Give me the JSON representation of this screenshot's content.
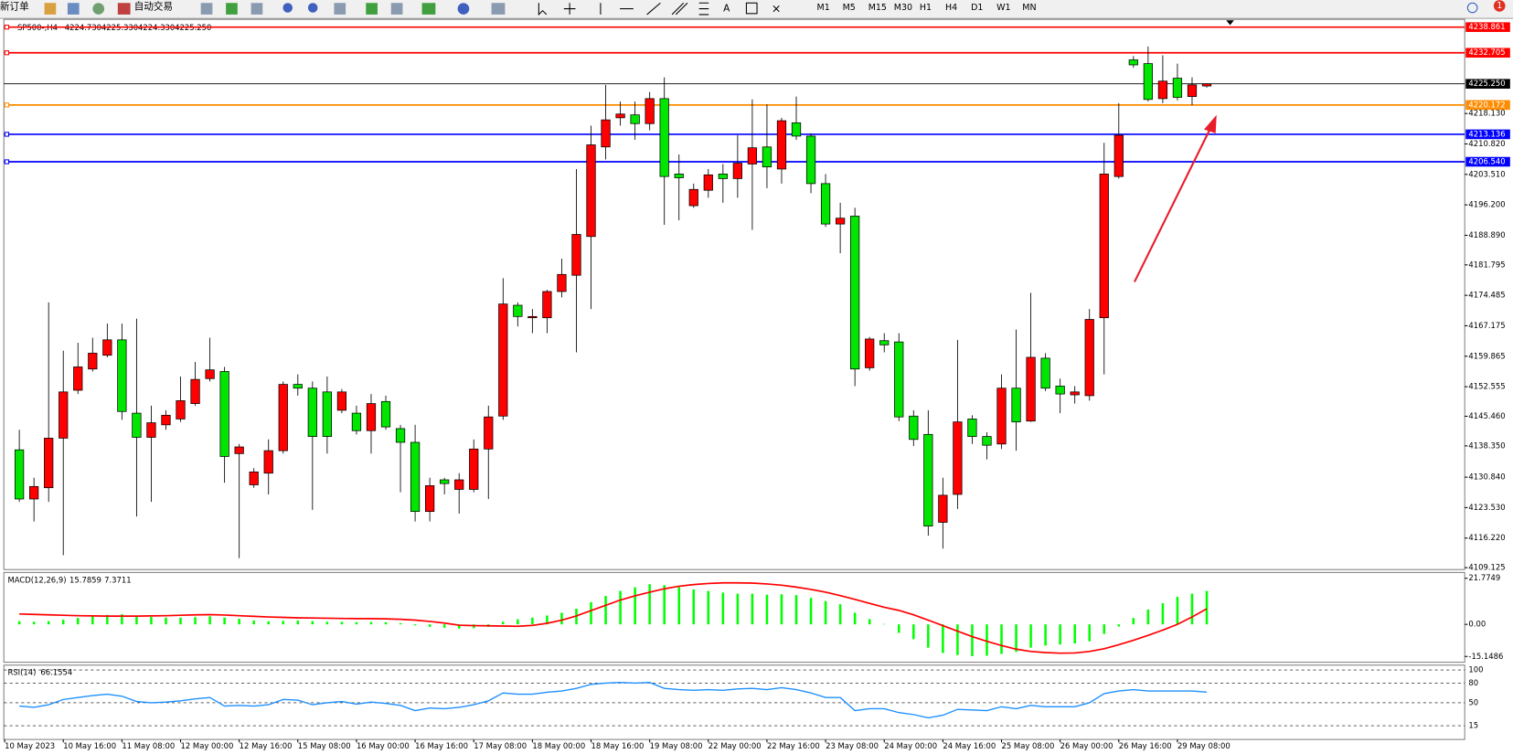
{
  "toolbar": {
    "new_order": "新订单",
    "auto_trading": "自动交易",
    "timeframes": [
      "M1",
      "M5",
      "M15",
      "M30",
      "H1",
      "H4",
      "D1",
      "W1",
      "MN"
    ],
    "notification_count": 1
  },
  "chart_data": [
    {
      "type": "candlestick",
      "title": "SP500-,H4",
      "ohlc_labels": [
        "4224.730",
        "4225.330",
        "4224.330",
        "4225.250"
      ],
      "up_color": "#ff0000",
      "down_color": "#00e600",
      "open": [
        4137.4,
        4125.6,
        4128.3,
        4140.2,
        4151.7,
        4156.8,
        4160.1,
        4163.8,
        4146.2,
        4140.4,
        4143.4,
        4144.8,
        4148.5,
        4154.5,
        4156.2,
        4136.5,
        4129.0,
        4131.8,
        4137.2,
        4153.1,
        4152.2,
        4151.3,
        4146.9,
        4146.2,
        4142.0,
        4149.0,
        4142.5,
        4139.2,
        4122.6,
        4130.2,
        4127.9,
        4127.9,
        4137.6,
        4145.5,
        4172.1,
        4169.1,
        4169.1,
        4175.4,
        4179.3,
        4188.6,
        4210.1,
        4217.1,
        4217.8,
        4215.7,
        4221.7,
        4203.6,
        4196.0,
        4199.7,
        4203.6,
        4202.5,
        4206.0,
        4210.1,
        4204.8,
        4215.9,
        4212.7,
        4201.3,
        4191.6,
        4193.5,
        4157.1,
        4163.6,
        4163.3,
        4145.5,
        4141.1,
        4120.0,
        4126.7,
        4144.8,
        4140.6,
        4138.8,
        4152.2,
        4144.3,
        4159.4,
        4152.7,
        4150.6,
        4150.4,
        4169.1,
        4203.0,
        4231.0,
        4230.1,
        4221.7,
        4226.6,
        4222.2,
        4224.73
      ],
      "high": [
        4142.2,
        4130.7,
        4172.8,
        4161.2,
        4163.1,
        4164.3,
        4167.7,
        4167.7,
        4168.9,
        4148.0,
        4146.9,
        4155.0,
        4158.5,
        4164.3,
        4157.3,
        4138.8,
        4133.0,
        4139.9,
        4153.8,
        4155.5,
        4153.8,
        4155.0,
        4152.0,
        4148.0,
        4150.8,
        4150.4,
        4143.4,
        4143.4,
        4130.7,
        4130.7,
        4131.8,
        4139.9,
        4148.0,
        4178.6,
        4172.8,
        4171.2,
        4175.8,
        4183.3,
        4204.8,
        4215.2,
        4225.0,
        4221.0,
        4221.0,
        4223.3,
        4226.8,
        4208.3,
        4201.3,
        4204.8,
        4206.0,
        4212.9,
        4221.5,
        4220.3,
        4217.1,
        4222.2,
        4213.4,
        4203.6,
        4196.7,
        4195.5,
        4164.5,
        4165.4,
        4165.4,
        4146.9,
        4146.9,
        4130.7,
        4163.8,
        4145.7,
        4141.6,
        4155.5,
        4166.3,
        4175.1,
        4160.6,
        4154.5,
        4152.7,
        4171.2,
        4211.1,
        4220.6,
        4231.9,
        4234.2,
        4232.1,
        4230.1,
        4226.8,
        4225.33
      ],
      "low": [
        4124.9,
        4120.2,
        4124.9,
        4112.1,
        4150.8,
        4156.2,
        4159.6,
        4144.6,
        4121.4,
        4124.9,
        4142.2,
        4144.1,
        4148.0,
        4153.8,
        4129.5,
        4111.4,
        4128.3,
        4126.7,
        4136.5,
        4150.4,
        4123.0,
        4136.5,
        4146.2,
        4141.1,
        4136.5,
        4142.2,
        4127.2,
        4120.2,
        4120.2,
        4126.7,
        4122.1,
        4127.2,
        4125.6,
        4144.6,
        4167.0,
        4165.4,
        4165.4,
        4174.0,
        4160.8,
        4171.2,
        4207.1,
        4215.2,
        4211.8,
        4214.1,
        4191.4,
        4192.5,
        4195.5,
        4197.9,
        4196.7,
        4197.9,
        4190.2,
        4200.2,
        4201.3,
        4211.8,
        4199.0,
        4190.9,
        4184.6,
        4152.7,
        4156.4,
        4160.8,
        4144.3,
        4138.3,
        4116.8,
        4113.7,
        4123.2,
        4138.8,
        4135.1,
        4137.6,
        4137.2,
        4144.1,
        4151.5,
        4146.2,
        4148.5,
        4149.2,
        4155.5,
        4202.5,
        4229.1,
        4221.0,
        4220.6,
        4221.3,
        4220.1,
        4224.33
      ],
      "close": [
        4125.6,
        4128.6,
        4140.2,
        4151.3,
        4157.3,
        4160.6,
        4163.8,
        4146.6,
        4140.4,
        4143.9,
        4145.7,
        4149.2,
        4154.3,
        4156.6,
        4135.8,
        4138.1,
        4132.1,
        4137.2,
        4153.1,
        4152.2,
        4140.6,
        4140.6,
        4151.3,
        4142.0,
        4148.5,
        4142.9,
        4139.2,
        4122.6,
        4128.8,
        4129.3,
        4130.2,
        4137.6,
        4145.3,
        4172.4,
        4169.4,
        4169.4,
        4175.4,
        4179.5,
        4189.1,
        4210.6,
        4216.6,
        4218.0,
        4215.7,
        4221.7,
        4203.0,
        4202.7,
        4199.9,
        4203.4,
        4202.5,
        4206.2,
        4209.9,
        4205.3,
        4216.4,
        4212.7,
        4201.3,
        4191.6,
        4193.0,
        4156.8,
        4164.0,
        4162.6,
        4145.3,
        4139.9,
        4119.1,
        4126.5,
        4144.1,
        4140.6,
        4138.5,
        4152.2,
        4144.1,
        4159.6,
        4152.2,
        4150.8,
        4151.3,
        4168.7,
        4203.6,
        4212.9,
        4229.8,
        4221.5,
        4225.9,
        4222.0,
        4225.0,
        4225.25
      ],
      "ylim": [
        4108.66,
        4240.72
      ],
      "yticks": [
        {
          "value": 4218.13,
          "label": "4218.130"
        },
        {
          "value": 4210.82,
          "label": "4210.820"
        },
        {
          "value": 4203.51,
          "label": "4203.510"
        },
        {
          "value": 4196.2,
          "label": "4196.200"
        },
        {
          "value": 4188.89,
          "label": "4188.890"
        },
        4181.795,
        4174.485,
        4167.175,
        4159.865,
        4152.555,
        {
          "value": 4145.46,
          "label": "4145.460"
        },
        {
          "value": 4138.35,
          "label": "4138.350"
        },
        {
          "value": 4130.84,
          "label": "4130.840"
        },
        {
          "value": 4123.53,
          "label": "4123.530"
        },
        {
          "value": 4116.22,
          "label": "4116.220"
        },
        4109.125
      ],
      "levels": [
        {
          "value": 4238.861,
          "color": "#ff0000"
        },
        {
          "value": 4232.705,
          "color": "#ff0000"
        },
        {
          "value": 4220.172,
          "color": "#ff8c00"
        },
        {
          "value": 4213.136,
          "color": "#0000ff"
        },
        {
          "value": 4206.54,
          "label": "4206.540",
          "color": "#0000ff"
        }
      ],
      "bid": {
        "value": 4225.25,
        "label": "4225.250",
        "color": "#000000"
      },
      "xticks": [
        {
          "value": -1,
          "label": "10 May 2023"
        },
        {
          "value": 3,
          "label": "10 May 16:00"
        },
        {
          "value": 7,
          "label": "11 May 08:00"
        },
        {
          "value": 11,
          "label": "12 May 00:00"
        },
        {
          "value": 15,
          "label": "12 May 16:00"
        },
        {
          "value": 19,
          "label": "15 May 08:00"
        },
        {
          "value": 23,
          "label": "16 May 00:00"
        },
        {
          "value": 27,
          "label": "16 May 16:00"
        },
        {
          "value": 31,
          "label": "17 May 08:00"
        },
        {
          "value": 35,
          "label": "18 May 00:00"
        },
        {
          "value": 39,
          "label": "18 May 16:00"
        },
        {
          "value": 43,
          "label": "19 May 08:00"
        },
        {
          "value": 47,
          "label": "22 May 00:00"
        },
        {
          "value": 51,
          "label": "22 May 16:00"
        },
        {
          "value": 55,
          "label": "23 May 08:00"
        },
        {
          "value": 59,
          "label": "24 May 00:00"
        },
        {
          "value": 63,
          "label": "24 May 16:00"
        },
        {
          "value": 67,
          "label": "25 May 08:00"
        },
        {
          "value": 71,
          "label": "26 May 00:00"
        },
        {
          "value": 75,
          "label": "26 May 16:00"
        },
        {
          "value": 79,
          "label": "29 May 08:00"
        }
      ]
    },
    {
      "type": "macd",
      "title": "MACD(12,26,9)",
      "series": [
        {
          "color": "#00ff00",
          "values": [
            1.5,
            1.2,
            1.5,
            2.2,
            3.0,
            3.8,
            4.5,
            4.8,
            4.0,
            3.5,
            3.2,
            3.2,
            3.4,
            3.8,
            3.2,
            2.6,
            1.8,
            1.4,
            1.6,
            1.8,
            1.5,
            1.2,
            1.2,
            1.0,
            1.1,
            1.0,
            0.6,
            -0.5,
            -1.2,
            -1.6,
            -2.0,
            -1.8,
            -1.2,
            1.2,
            2.4,
            3.2,
            4.2,
            5.5,
            7.4,
            10.5,
            13.4,
            15.8,
            17.5,
            19.0,
            18.5,
            17.6,
            16.5,
            15.8,
            15.0,
            14.5,
            14.5,
            14.0,
            14.2,
            13.8,
            12.5,
            11.0,
            9.5,
            5.5,
            2.5,
            0.2,
            -4,
            -7,
            -11,
            -13.5,
            -14.5,
            -15,
            -14.8,
            -14,
            -13,
            -11,
            -10,
            -9.5,
            -9,
            -8,
            -4.5,
            -1,
            3,
            7,
            10,
            13,
            14.5,
            15.7859
          ]
        },
        {
          "color": "#ff0000",
          "values": [
            4.9,
            4.7,
            4.5,
            4.3,
            4.1,
            4.0,
            3.9,
            3.9,
            3.9,
            4.0,
            4.1,
            4.3,
            4.5,
            4.6,
            4.4,
            4.1,
            3.8,
            3.5,
            3.3,
            3.1,
            3.0,
            2.9,
            2.8,
            2.7,
            2.7,
            2.6,
            2.4,
            2.0,
            1.4,
            0.6,
            -0.4,
            -0.6,
            -0.7,
            -0.8,
            -0.9,
            -0.5,
            0.5,
            2.0,
            4.0,
            6.5,
            9.0,
            11.5,
            13.5,
            15.2,
            16.8,
            18.0,
            18.8,
            19.3,
            19.6,
            19.6,
            19.5,
            19.1,
            18.5,
            17.6,
            16.5,
            15.2,
            13.6,
            11.8,
            9.9,
            8.1,
            6.6,
            4.5,
            2.0,
            -0.6,
            -3.2,
            -5.8,
            -8.0,
            -10.0,
            -11.7,
            -12.8,
            -13.3,
            -13.6,
            -13.5,
            -12.8,
            -11.5,
            -9.6,
            -7.5,
            -5.2,
            -2.7,
            0.0,
            3.5,
            7.3711
          ]
        }
      ],
      "ylim": [
        -15.1486,
        21.7749
      ],
      "yticks": [
        21.7749,
        {
          "value": 0,
          "label": "0.00"
        },
        -15.1486
      ]
    },
    {
      "type": "line",
      "title": "RSI(14)",
      "series": [
        {
          "color": "#1e90ff",
          "values": [
            45,
            43,
            47,
            55,
            58,
            61,
            63,
            60,
            52,
            50,
            51,
            53,
            56,
            58,
            45,
            46,
            45,
            47,
            55,
            54,
            47,
            50,
            52,
            48,
            51,
            49,
            46,
            38,
            42,
            41,
            43,
            47,
            53,
            65,
            63,
            63,
            66,
            68,
            72,
            78,
            80,
            81,
            80,
            81,
            72,
            70,
            69,
            70,
            69,
            71,
            72,
            70,
            73,
            70,
            65,
            58,
            58,
            38,
            41,
            41,
            35,
            32,
            27,
            31,
            40,
            39,
            38,
            44,
            41,
            46,
            44,
            44,
            44,
            50,
            64,
            68,
            70,
            68,
            68,
            68,
            68,
            66.1554
          ]
        }
      ],
      "ylim": [
        0,
        100
      ],
      "yticks": [
        100,
        80,
        50,
        15
      ]
    }
  ]
}
